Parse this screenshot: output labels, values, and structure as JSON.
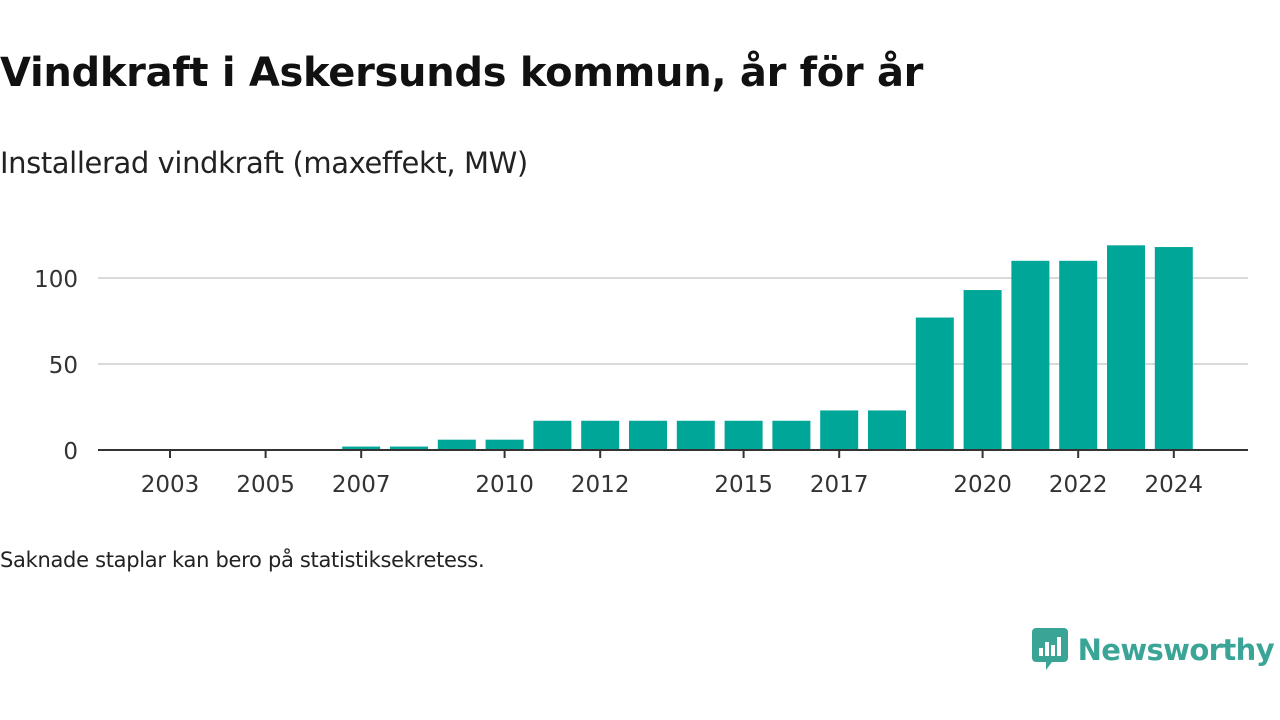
{
  "header": {
    "title": "Vindkraft i Askersunds kommun, år för år",
    "subtitle": "Installerad vindkraft (maxeffekt, MW)"
  },
  "footer": {
    "note": "Saknade staplar kan bero på statistiksekretess.",
    "brand": "Newsworthy"
  },
  "colors": {
    "bar": "#00a698",
    "grid": "#d9d9d9",
    "axis": "#333333",
    "brand": "#3aa597"
  },
  "chart_data": {
    "type": "bar",
    "title": "Vindkraft i Askersunds kommun, år för år",
    "subtitle": "Installerad vindkraft (maxeffekt, MW)",
    "categories": [
      2003,
      2004,
      2005,
      2006,
      2007,
      2008,
      2009,
      2010,
      2011,
      2012,
      2013,
      2014,
      2015,
      2016,
      2017,
      2018,
      2019,
      2020,
      2021,
      2022,
      2023,
      2024
    ],
    "values": [
      0,
      0,
      0,
      0,
      2,
      2,
      6,
      6,
      17,
      17,
      17,
      17,
      17,
      17,
      23,
      23,
      77,
      93,
      110,
      110,
      119,
      118
    ],
    "x_tick_labels": [
      "2003",
      "2005",
      "2007",
      "2010",
      "2012",
      "2015",
      "2017",
      "2020",
      "2022",
      "2024"
    ],
    "y_ticks": [
      0,
      50,
      100
    ],
    "ylim": [
      0,
      125
    ],
    "grid": true,
    "legend": "none"
  }
}
